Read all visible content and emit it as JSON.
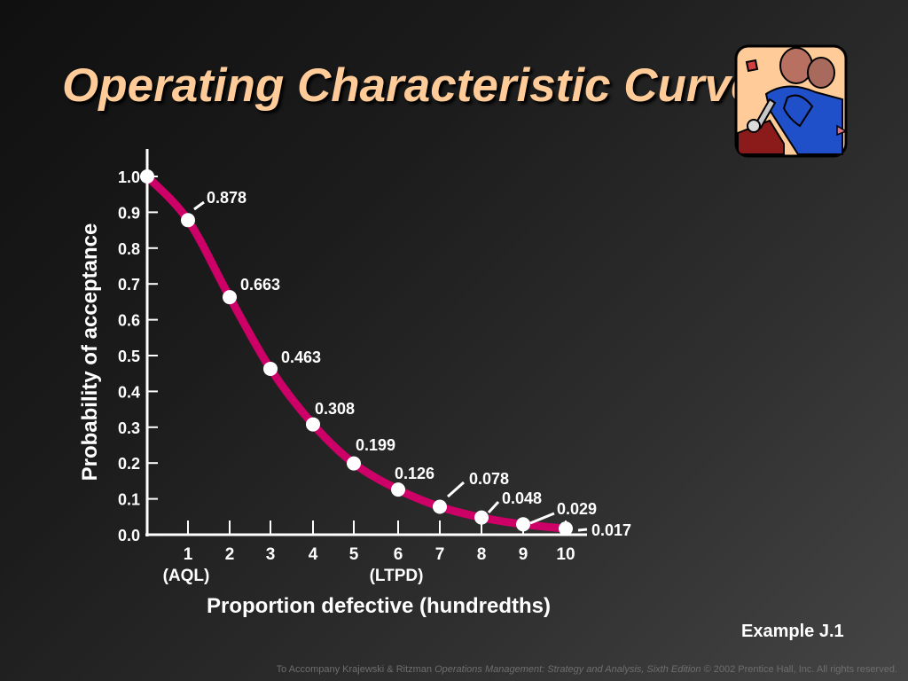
{
  "title": "Operating Characteristic Curve",
  "example": "Example J.1",
  "footer": {
    "prefix": "To Accompany Krajewski & Ritzman ",
    "book": "Operations Management: Strategy and Analysis, Sixth Edition",
    "suffix": " © 2002 Prentice Hall, Inc. All rights reserved."
  },
  "clipart_icon": "mechanic-with-wrench-icon",
  "colors": {
    "title": "#ffcc99",
    "curve": "#cc0066",
    "points": "#ffffff",
    "axis": "#ffffff",
    "text": "#ffffff"
  },
  "chart_data": {
    "type": "line",
    "title": "",
    "xlabel": "Proportion defective (hundredths)",
    "ylabel": "Probability of acceptance",
    "xlim": [
      0,
      10
    ],
    "ylim": [
      0,
      1.0
    ],
    "yticks": [
      "0.0",
      "0.1",
      "0.2",
      "0.3",
      "0.4",
      "0.5",
      "0.6",
      "0.7",
      "0.8",
      "0.9",
      "1.0"
    ],
    "xticks": [
      "1",
      "2",
      "3",
      "4",
      "5",
      "6",
      "7",
      "8",
      "9",
      "10"
    ],
    "xtick_sublabels": {
      "1": "(AQL)",
      "6": "(LTPD)"
    },
    "grid": false,
    "x": [
      0,
      1,
      2,
      3,
      4,
      5,
      6,
      7,
      8,
      9,
      10
    ],
    "y": [
      1.0,
      0.878,
      0.663,
      0.463,
      0.308,
      0.199,
      0.126,
      0.078,
      0.048,
      0.029,
      0.017
    ],
    "data_labels": [
      "",
      "0.878",
      "0.663",
      "0.463",
      "0.308",
      "0.199",
      "0.126",
      "0.078",
      "0.048",
      "0.029",
      "0.017"
    ]
  }
}
